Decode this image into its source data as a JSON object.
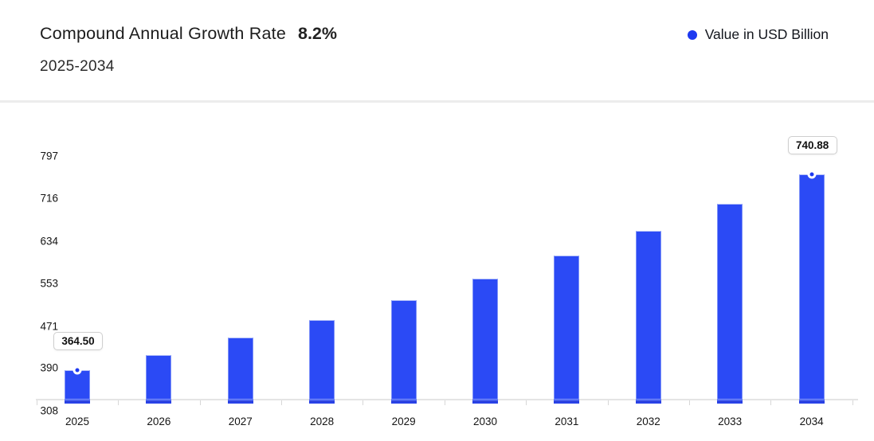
{
  "header": {
    "title": "Compound Annual Growth Rate",
    "cagr_value": "8.2%",
    "subtitle": "2025-2034",
    "legend": {
      "label": "Value in USD Billion",
      "marker_color": "#1d39f0"
    }
  },
  "chart_data": {
    "type": "bar",
    "title": "Compound Annual Growth Rate 8.2%",
    "subtitle": "2025-2034",
    "series": [
      {
        "name": "Value in USD Billion",
        "values": [
          364.5,
          394.39,
          426.73,
          461.72,
          499.58,
          540.55,
          584.87,
          632.83,
          684.72,
          740.88
        ]
      }
    ],
    "categories": [
      "2025",
      "2026",
      "2027",
      "2028",
      "2029",
      "2030",
      "2031",
      "2032",
      "2033",
      "2034"
    ],
    "y_ticks": [
      308,
      390,
      471,
      553,
      634,
      716,
      797
    ],
    "ylim": [
      308,
      848
    ],
    "xlabel": "",
    "ylabel": "",
    "grid": false,
    "legend_position": "top-right",
    "bar_color": "#2b4af5",
    "marker_color": "#1d39f0",
    "data_labels": [
      {
        "category": "2025",
        "label": "364.50"
      },
      {
        "category": "2034",
        "label": "740.88"
      }
    ]
  }
}
